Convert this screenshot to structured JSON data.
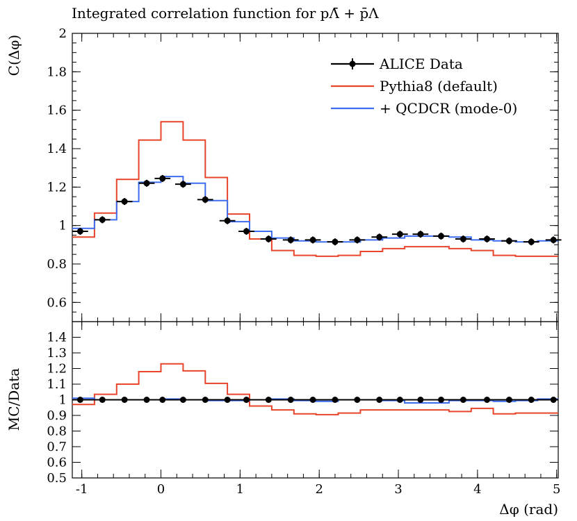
{
  "chart_data": [
    {
      "type": "line",
      "panel": "main",
      "title": "Integrated correlation function for pΛ̄ + p̄Λ",
      "ylabel": "C(Δφ)",
      "xlabel": "",
      "xlim": [
        -1.12,
        5.02
      ],
      "ylim": [
        0.5,
        2.0
      ],
      "xticks": [
        "-1",
        "0",
        "1",
        "2",
        "3",
        "4",
        "5"
      ],
      "yticks": [
        "0.6",
        "0.8",
        "1",
        "1.2",
        "1.4",
        "1.6",
        "1.8",
        "2"
      ],
      "legend_position": "top-right",
      "bin_edges": [
        -1.12,
        -0.84,
        -0.56,
        -0.28,
        0,
        0.28,
        0.56,
        0.84,
        1.12,
        1.4,
        1.68,
        1.96,
        2.24,
        2.52,
        2.8,
        3.08,
        3.36,
        3.64,
        3.92,
        4.2,
        4.48,
        4.76,
        5.02
      ],
      "series": [
        {
          "name": "ALICE Data",
          "color": "#000000",
          "x": [
            -1.02,
            -0.74,
            -0.46,
            -0.18,
            0.02,
            0.28,
            0.56,
            0.84,
            1.08,
            1.36,
            1.64,
            1.92,
            2.2,
            2.48,
            2.76,
            3.02,
            3.28,
            3.54,
            3.82,
            4.12,
            4.4,
            4.68,
            4.96
          ],
          "x_err": [
            0.1,
            0.1,
            0.1,
            0.1,
            0.1,
            0.1,
            0.1,
            0.1,
            0.1,
            0.1,
            0.1,
            0.1,
            0.1,
            0.1,
            0.1,
            0.1,
            0.1,
            0.1,
            0.1,
            0.1,
            0.1,
            0.1,
            0.1
          ],
          "y": [
            0.97,
            1.03,
            1.125,
            1.22,
            1.245,
            1.215,
            1.135,
            1.025,
            0.97,
            0.93,
            0.925,
            0.925,
            0.915,
            0.925,
            0.94,
            0.955,
            0.955,
            0.945,
            0.93,
            0.93,
            0.92,
            0.915,
            0.925
          ]
        },
        {
          "name": "Pythia8 (default)",
          "color": "#e8442a",
          "values": [
            0.94,
            1.065,
            1.24,
            1.445,
            1.54,
            1.445,
            1.25,
            1.06,
            0.93,
            0.87,
            0.845,
            0.84,
            0.845,
            0.865,
            0.88,
            0.89,
            0.89,
            0.88,
            0.87,
            0.845,
            0.84,
            0.84
          ]
        },
        {
          "name": "+ QCDCR (mode-0)",
          "color": "#3d6cf0",
          "values": [
            0.985,
            1.03,
            1.125,
            1.225,
            1.255,
            1.22,
            1.13,
            1.02,
            0.97,
            0.935,
            0.92,
            0.915,
            0.915,
            0.925,
            0.935,
            0.945,
            0.945,
            0.94,
            0.925,
            0.92,
            0.915,
            0.92
          ]
        }
      ]
    },
    {
      "type": "line",
      "panel": "ratio",
      "ylabel": "MC/Data",
      "xlabel": "Δφ (rad)",
      "xlim": [
        -1.12,
        5.02
      ],
      "ylim": [
        0.5,
        1.5
      ],
      "xticks": [
        "-1",
        "0",
        "1",
        "2",
        "3",
        "4",
        "5"
      ],
      "yticks": [
        "0.5",
        "0.6",
        "0.7",
        "0.8",
        "0.9",
        "1",
        "1.1",
        "1.2",
        "1.3",
        "1.4"
      ],
      "series": [
        {
          "name": "ALICE Data",
          "color": "#000000",
          "y": [
            1,
            1,
            1,
            1,
            1,
            1,
            1,
            1,
            1,
            1,
            1,
            1,
            1,
            1,
            1,
            1,
            1,
            1,
            1,
            1,
            1,
            1,
            1
          ]
        },
        {
          "name": "Pythia8 (default)",
          "color": "#e8442a",
          "values": [
            0.97,
            1.035,
            1.1,
            1.18,
            1.23,
            1.185,
            1.105,
            1.035,
            0.96,
            0.935,
            0.91,
            0.905,
            0.915,
            0.935,
            0.935,
            0.935,
            0.935,
            0.925,
            0.945,
            0.91,
            0.915,
            0.915
          ]
        },
        {
          "name": "+ QCDCR (mode-0)",
          "color": "#3d6cf0",
          "values": [
            1.01,
            1.0,
            1.0,
            1.0,
            1.005,
            1.0,
            0.995,
            0.995,
            1.0,
            1.005,
            0.995,
            0.99,
            1.0,
            1.0,
            0.995,
            0.98,
            0.98,
            0.995,
            0.995,
            0.99,
            0.995,
            1.005
          ]
        }
      ]
    }
  ]
}
